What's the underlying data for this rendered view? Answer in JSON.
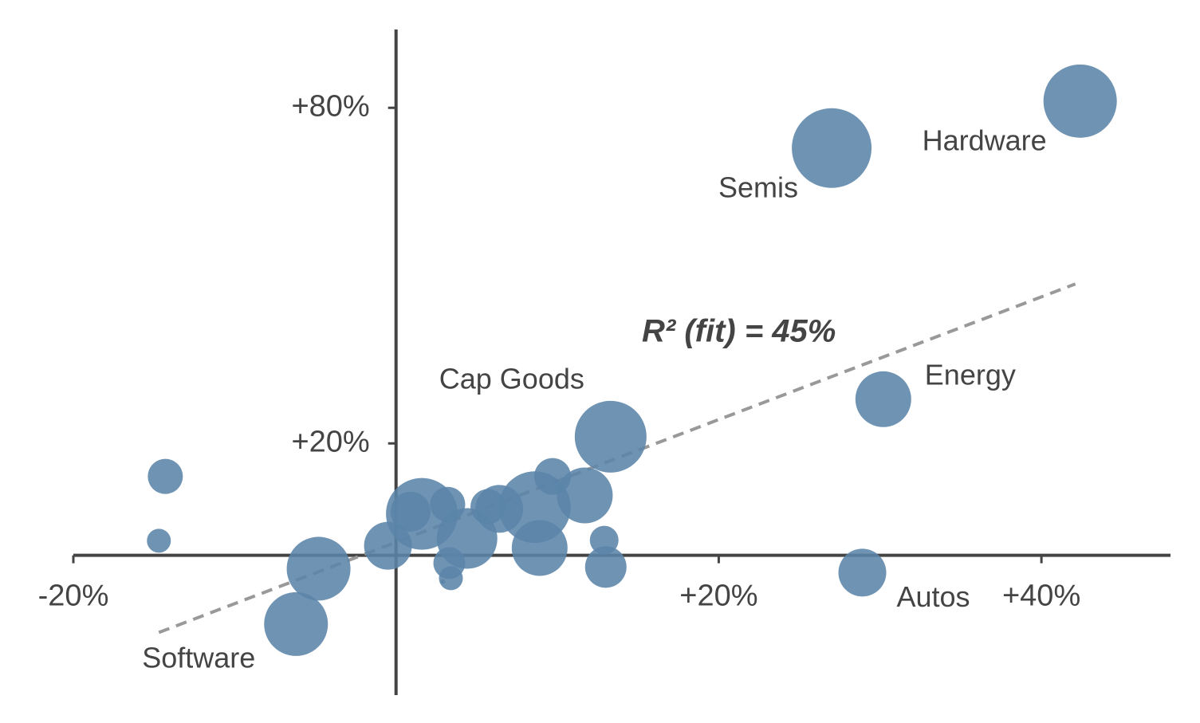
{
  "chart_data": {
    "type": "scatter",
    "annotation": "R² (fit) = 45%",
    "color": "#5b84a8",
    "x": [
      42.4,
      27.0,
      30.2,
      13.3,
      28.9,
      -6.2,
      -4.8,
      -14.3,
      -14.7,
      -0.5,
      1.6,
      0.9,
      3.2,
      4.4,
      5.7,
      6.4,
      8.6,
      9.7,
      8.9,
      11.7,
      12.9,
      13.0,
      3.3,
      3.4,
      2.9
    ],
    "values": [
      81.2,
      72.8,
      27.9,
      21.2,
      -3.1,
      -12.3,
      -2.4,
      14.1,
      2.6,
      1.7,
      7.4,
      7.8,
      9.1,
      3.0,
      8.7,
      8.3,
      8.6,
      14.1,
      1.3,
      10.7,
      2.7,
      -2.1,
      -1.4,
      -4.1,
      -4.7
    ],
    "sizes": [
      46,
      50,
      35,
      45,
      30,
      40,
      40,
      22,
      15,
      30,
      45,
      25,
      22,
      38,
      22,
      30,
      45,
      23,
      35,
      35,
      18,
      26,
      20,
      15,
      3
    ],
    "labels": [
      "Hardware",
      "Semis",
      "Energy",
      "Cap Goods",
      "Autos",
      "Software",
      null,
      null,
      null,
      null,
      null,
      null,
      null,
      null,
      null,
      null,
      null,
      null,
      null,
      null,
      null,
      null,
      null,
      null,
      null
    ],
    "fit_line": {
      "x": [
        -14.7,
        42.1
      ],
      "values": [
        -13.8,
        48.5
      ],
      "color": "#999999"
    },
    "xlim": [
      -20,
      48
    ],
    "ylim": [
      -25,
      94
    ],
    "xticks": [
      {
        "value": -20,
        "label": "-20%"
      },
      {
        "value": 20,
        "label": "+20%"
      },
      {
        "value": 40,
        "label": "+40%"
      }
    ],
    "yticks": [
      {
        "value": 20,
        "label": "+20%"
      },
      {
        "value": 80,
        "label": "+80%"
      }
    ]
  }
}
